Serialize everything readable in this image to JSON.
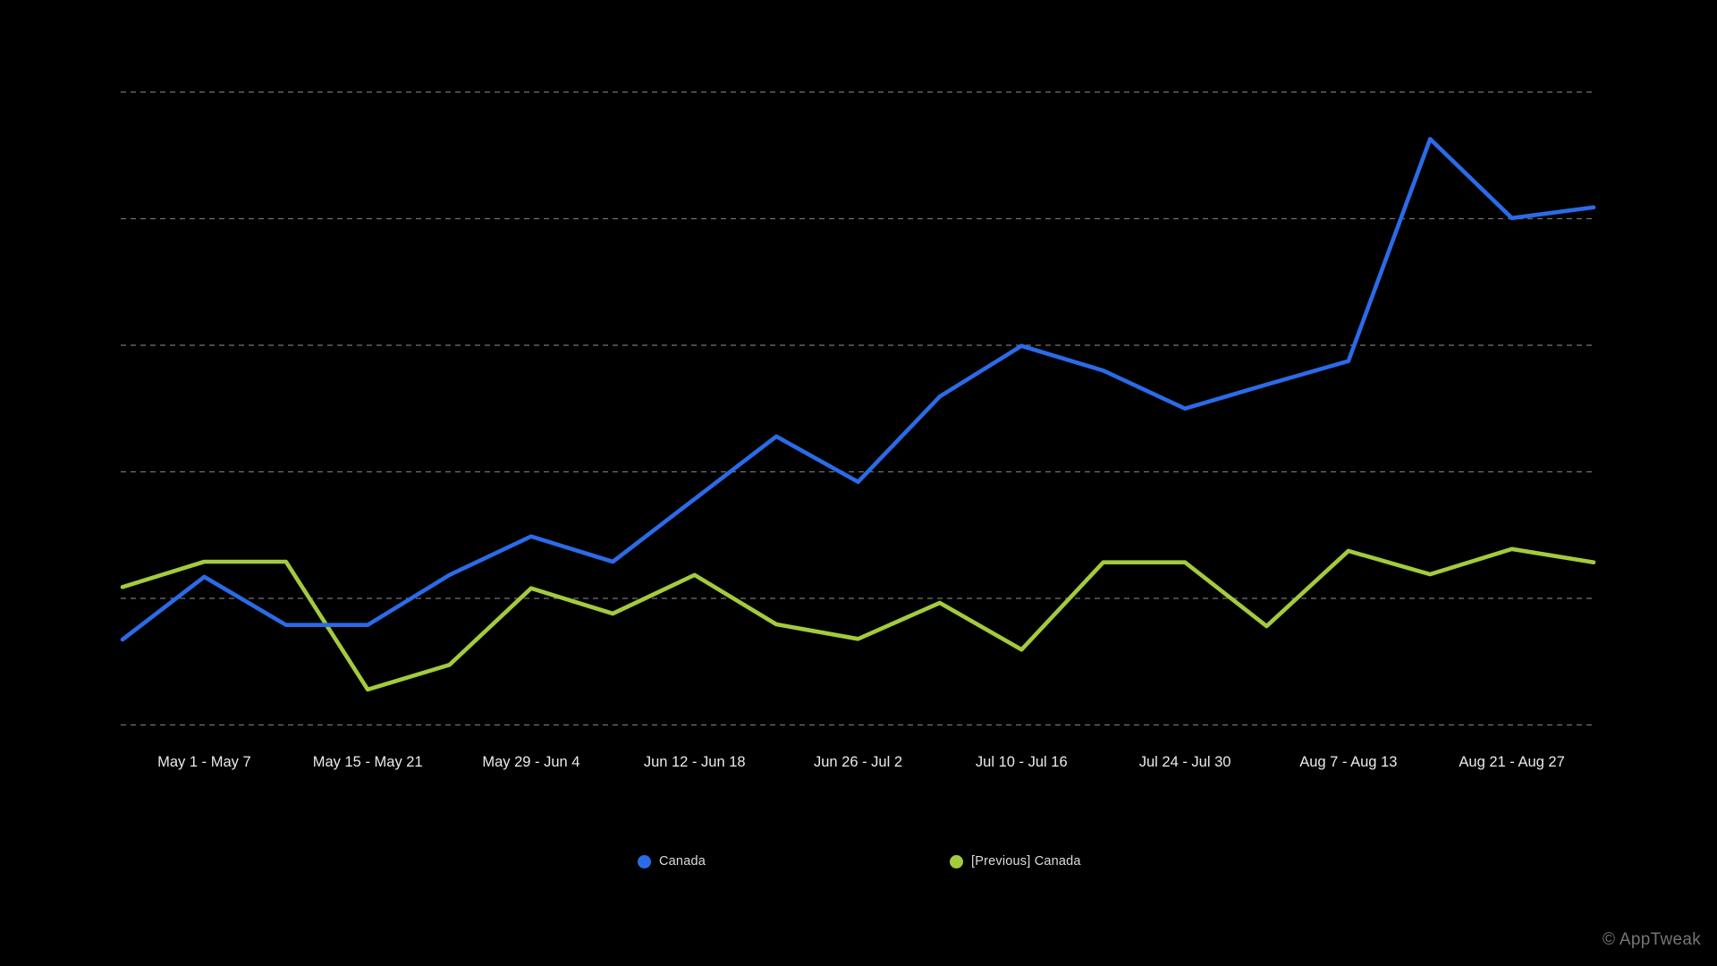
{
  "chart_data": {
    "type": "line",
    "title": "",
    "xlabel": "",
    "ylabel": "",
    "y_axis_labels_visible": false,
    "ylim": [
      0,
      100
    ],
    "grid_step": 20,
    "grid": "horizontal-dashed",
    "legend_position": "bottom",
    "background_color": "#000000",
    "gridline_color": "rgba(255,255,255,0.45)",
    "tick_label_color": "#ebebeb",
    "num_points": 19,
    "x_tick_labels": [
      {
        "point_index": 1,
        "label": "May 1 - May 7"
      },
      {
        "point_index": 3,
        "label": "May 15 - May 21"
      },
      {
        "point_index": 5,
        "label": "May 29 - Jun 4"
      },
      {
        "point_index": 7,
        "label": "Jun 12 - Jun 18"
      },
      {
        "point_index": 9,
        "label": "Jun 26 - Jul 2"
      },
      {
        "point_index": 11,
        "label": "Jul 10 - Jul 16"
      },
      {
        "point_index": 13,
        "label": "Jul 24 - Jul 30"
      },
      {
        "point_index": 15,
        "label": "Aug 7 - Aug 13"
      },
      {
        "point_index": 17,
        "label": "Aug 21 - Aug 27"
      }
    ],
    "series": [
      {
        "name": "[Previous] Canada",
        "color": "#a3cb3d",
        "values": [
          21.8,
          25.8,
          25.8,
          5.6,
          9.5,
          21.6,
          17.6,
          23.7,
          15.9,
          13.6,
          19.3,
          11.9,
          25.7,
          25.7,
          15.6,
          27.5,
          23.8,
          27.8,
          25.7
        ]
      },
      {
        "name": "Canada",
        "color": "#2b6be8",
        "values": [
          13.5,
          23.4,
          15.8,
          15.8,
          23.7,
          29.8,
          25.8,
          35.7,
          45.6,
          38.4,
          51.9,
          59.9,
          56.0,
          50.0,
          53.8,
          57.5,
          92.6,
          80.1,
          81.8
        ]
      }
    ]
  },
  "legend": {
    "items": [
      {
        "label": "Canada",
        "color": "#2b6be8"
      },
      {
        "label": "[Previous] Canada",
        "color": "#a3cb3d"
      }
    ]
  },
  "footer": {
    "watermark": "© AppTweak"
  }
}
